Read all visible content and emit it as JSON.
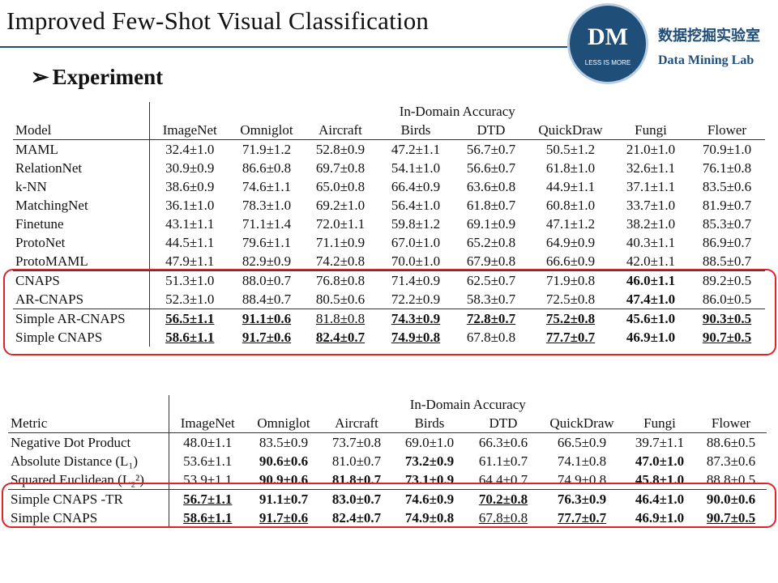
{
  "header": {
    "title": "Improved Few-Shot Visual Classification",
    "logo_initials": "DM",
    "logo_motto": "LESS IS MORE",
    "logo_chinese": "数据挖掘实验室",
    "logo_english": "Data Mining Lab"
  },
  "section": {
    "bullet": "Experiment"
  },
  "table1": {
    "group_header": "In-Domain Accuracy",
    "first_col": "Model",
    "columns": [
      "ImageNet",
      "Omniglot",
      "Aircraft",
      "Birds",
      "DTD",
      "QuickDraw",
      "Fungi",
      "Flower"
    ],
    "rows": [
      {
        "name": "MAML",
        "cells": [
          {
            "v": "32.4±1.0"
          },
          {
            "v": "71.9±1.2"
          },
          {
            "v": "52.8±0.9"
          },
          {
            "v": "47.2±1.1"
          },
          {
            "v": "56.7±0.7"
          },
          {
            "v": "50.5±1.2"
          },
          {
            "v": "21.0±1.0"
          },
          {
            "v": "70.9±1.0"
          }
        ]
      },
      {
        "name": "RelationNet",
        "cells": [
          {
            "v": "30.9±0.9"
          },
          {
            "v": "86.6±0.8"
          },
          {
            "v": "69.7±0.8"
          },
          {
            "v": "54.1±1.0"
          },
          {
            "v": "56.6±0.7"
          },
          {
            "v": "61.8±1.0"
          },
          {
            "v": "32.6±1.1"
          },
          {
            "v": "76.1±0.8"
          }
        ]
      },
      {
        "name": "k-NN",
        "cells": [
          {
            "v": "38.6±0.9"
          },
          {
            "v": "74.6±1.1"
          },
          {
            "v": "65.0±0.8"
          },
          {
            "v": "66.4±0.9"
          },
          {
            "v": "63.6±0.8"
          },
          {
            "v": "44.9±1.1"
          },
          {
            "v": "37.1±1.1"
          },
          {
            "v": "83.5±0.6"
          }
        ]
      },
      {
        "name": "MatchingNet",
        "cells": [
          {
            "v": "36.1±1.0"
          },
          {
            "v": "78.3±1.0"
          },
          {
            "v": "69.2±1.0"
          },
          {
            "v": "56.4±1.0"
          },
          {
            "v": "61.8±0.7"
          },
          {
            "v": "60.8±1.0"
          },
          {
            "v": "33.7±1.0"
          },
          {
            "v": "81.9±0.7"
          }
        ]
      },
      {
        "name": "Finetune",
        "cells": [
          {
            "v": "43.1±1.1"
          },
          {
            "v": "71.1±1.4"
          },
          {
            "v": "72.0±1.1"
          },
          {
            "v": "59.8±1.2"
          },
          {
            "v": "69.1±0.9"
          },
          {
            "v": "47.1±1.2"
          },
          {
            "v": "38.2±1.0"
          },
          {
            "v": "85.3±0.7"
          }
        ]
      },
      {
        "name": "ProtoNet",
        "cells": [
          {
            "v": "44.5±1.1"
          },
          {
            "v": "79.6±1.1"
          },
          {
            "v": "71.1±0.9"
          },
          {
            "v": "67.0±1.0"
          },
          {
            "v": "65.2±0.8"
          },
          {
            "v": "64.9±0.9"
          },
          {
            "v": "40.3±1.1"
          },
          {
            "v": "86.9±0.7"
          }
        ]
      },
      {
        "name": "ProtoMAML",
        "cells": [
          {
            "v": "47.9±1.1"
          },
          {
            "v": "82.9±0.9"
          },
          {
            "v": "74.2±0.8"
          },
          {
            "v": "70.0±1.0"
          },
          {
            "v": "67.9±0.8"
          },
          {
            "v": "66.6±0.9"
          },
          {
            "v": "42.0±1.1"
          },
          {
            "v": "88.5±0.7"
          }
        ]
      },
      {
        "name": "CNAPS",
        "sep": true,
        "cells": [
          {
            "v": "51.3±1.0"
          },
          {
            "v": "88.0±0.7"
          },
          {
            "v": "76.8±0.8"
          },
          {
            "v": "71.4±0.9"
          },
          {
            "v": "62.5±0.7"
          },
          {
            "v": "71.9±0.8"
          },
          {
            "v": "46.0±1.1",
            "b": true
          },
          {
            "v": "89.2±0.5"
          }
        ]
      },
      {
        "name": "AR-CNAPS",
        "cells": [
          {
            "v": "52.3±1.0"
          },
          {
            "v": "88.4±0.7"
          },
          {
            "v": "80.5±0.6"
          },
          {
            "v": "72.2±0.9"
          },
          {
            "v": "58.3±0.7"
          },
          {
            "v": "72.5±0.8"
          },
          {
            "v": "47.4±1.0",
            "b": true
          },
          {
            "v": "86.0±0.5"
          }
        ]
      },
      {
        "name": "Simple AR-CNAPS",
        "sep": true,
        "cells": [
          {
            "v": "56.5±1.1",
            "b": true,
            "u": true
          },
          {
            "v": "91.1±0.6",
            "b": true,
            "u": true
          },
          {
            "v": "81.8±0.8",
            "u": true
          },
          {
            "v": "74.3±0.9",
            "b": true,
            "u": true
          },
          {
            "v": "72.8±0.7",
            "b": true,
            "u": true
          },
          {
            "v": "75.2±0.8",
            "b": true,
            "u": true
          },
          {
            "v": "45.6±1.0",
            "b": true
          },
          {
            "v": "90.3±0.5",
            "b": true,
            "u": true
          }
        ]
      },
      {
        "name": "Simple CNAPS",
        "cells": [
          {
            "v": "58.6±1.1",
            "b": true,
            "u": true
          },
          {
            "v": "91.7±0.6",
            "b": true,
            "u": true
          },
          {
            "v": "82.4±0.7",
            "b": true,
            "u": true
          },
          {
            "v": "74.9±0.8",
            "b": true,
            "u": true
          },
          {
            "v": "67.8±0.8"
          },
          {
            "v": "77.7±0.7",
            "b": true,
            "u": true
          },
          {
            "v": "46.9±1.0",
            "b": true
          },
          {
            "v": "90.7±0.5",
            "b": true,
            "u": true
          }
        ]
      }
    ]
  },
  "table2": {
    "group_header": "In-Domain Accuracy",
    "first_col": "Metric",
    "columns": [
      "ImageNet",
      "Omniglot",
      "Aircraft",
      "Birds",
      "DTD",
      "QuickDraw",
      "Fungi",
      "Flower"
    ],
    "rows": [
      {
        "name": "Negative Dot Product",
        "cells": [
          {
            "v": "48.0±1.1"
          },
          {
            "v": "83.5±0.9"
          },
          {
            "v": "73.7±0.8"
          },
          {
            "v": "69.0±1.0"
          },
          {
            "v": "66.3±0.6"
          },
          {
            "v": "66.5±0.9"
          },
          {
            "v": "39.7±1.1"
          },
          {
            "v": "88.6±0.5"
          }
        ]
      },
      {
        "name": "Absolute Distance (L₁)",
        "cells": [
          {
            "v": "53.6±1.1"
          },
          {
            "v": "90.6±0.6",
            "b": true
          },
          {
            "v": "81.0±0.7"
          },
          {
            "v": "73.2±0.9",
            "b": true
          },
          {
            "v": "61.1±0.7"
          },
          {
            "v": "74.1±0.8"
          },
          {
            "v": "47.0±1.0",
            "b": true
          },
          {
            "v": "87.3±0.6"
          }
        ]
      },
      {
        "name": "Squared Euclidean (L₂²)",
        "cells": [
          {
            "v": "53.9±1.1"
          },
          {
            "v": "90.9±0.6",
            "b": true
          },
          {
            "v": "81.8±0.7",
            "b": true
          },
          {
            "v": "73.1±0.9",
            "b": true
          },
          {
            "v": "64.4±0.7"
          },
          {
            "v": "74.9±0.8"
          },
          {
            "v": "45.8±1.0",
            "b": true
          },
          {
            "v": "88.8±0.5"
          }
        ]
      },
      {
        "name": "Simple CNAPS -TR",
        "sep": true,
        "cells": [
          {
            "v": "56.7±1.1",
            "b": true,
            "u": true
          },
          {
            "v": "91.1±0.7",
            "b": true
          },
          {
            "v": "83.0±0.7",
            "b": true
          },
          {
            "v": "74.6±0.9",
            "b": true
          },
          {
            "v": "70.2±0.8",
            "b": true,
            "u": true
          },
          {
            "v": "76.3±0.9",
            "b": true
          },
          {
            "v": "46.4±1.0",
            "b": true
          },
          {
            "v": "90.0±0.6",
            "b": true
          }
        ]
      },
      {
        "name": "Simple CNAPS",
        "cells": [
          {
            "v": "58.6±1.1",
            "b": true,
            "u": true
          },
          {
            "v": "91.7±0.6",
            "b": true,
            "u": true
          },
          {
            "v": "82.4±0.7",
            "b": true
          },
          {
            "v": "74.9±0.8",
            "b": true
          },
          {
            "v": "67.8±0.8",
            "u": true
          },
          {
            "v": "77.7±0.7",
            "b": true,
            "u": true
          },
          {
            "v": "46.9±1.0",
            "b": true
          },
          {
            "v": "90.7±0.5",
            "b": true,
            "u": true
          }
        ]
      }
    ]
  }
}
